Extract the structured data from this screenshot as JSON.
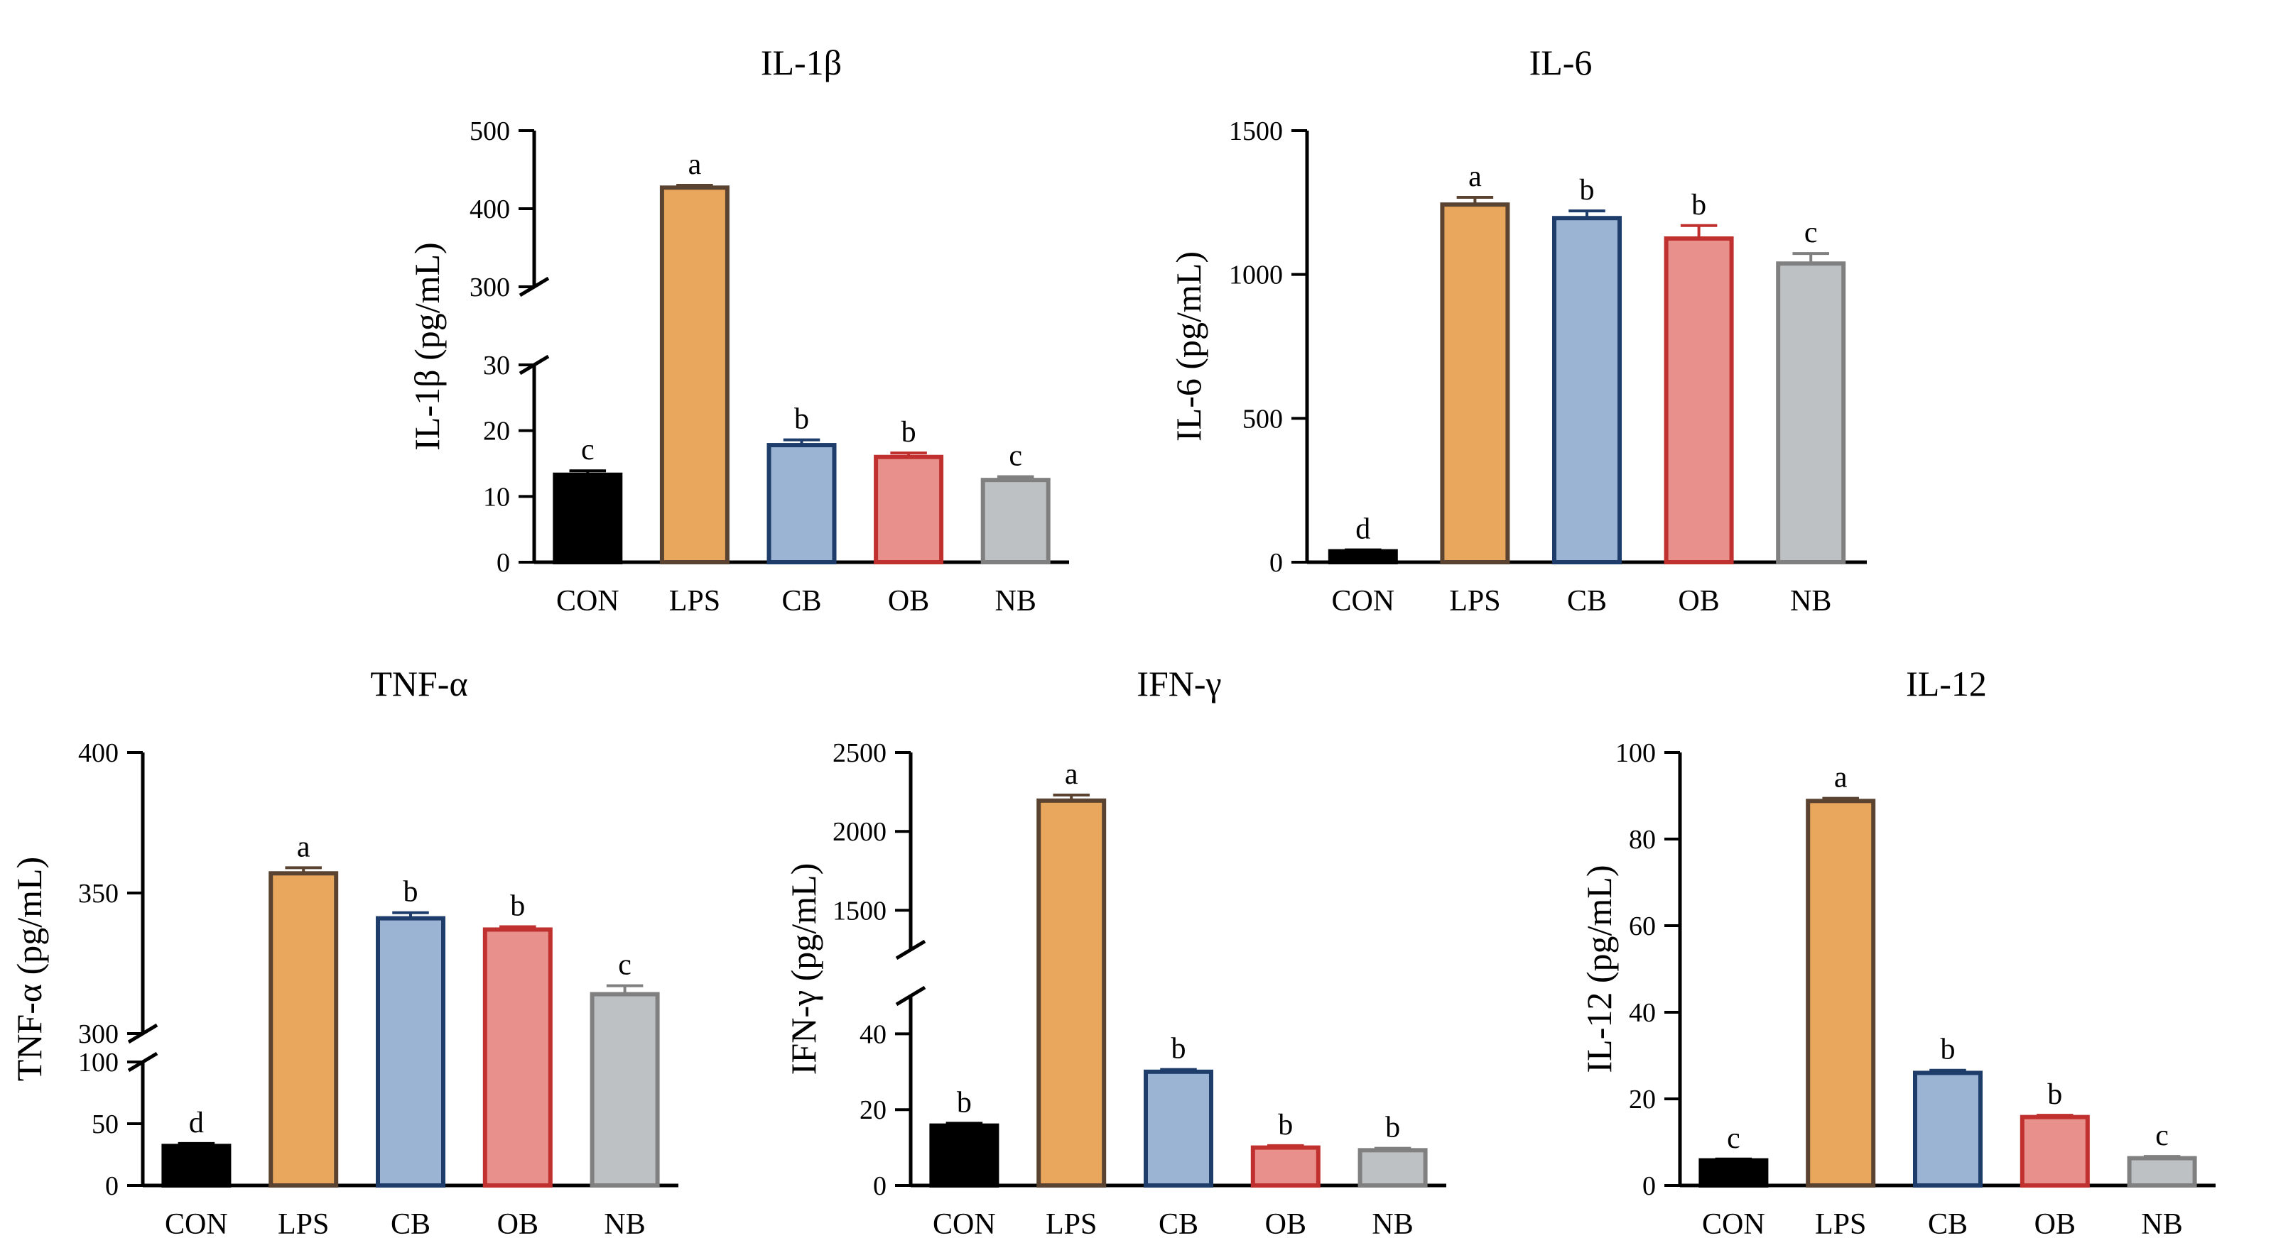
{
  "colors": {
    "CON": {
      "fill": "#000000",
      "stroke": "#000000"
    },
    "LPS": {
      "fill": "#E8A75C",
      "stroke": "#5A4330"
    },
    "CB": {
      "fill": "#9BB4D3",
      "stroke": "#1F3D6B"
    },
    "OB": {
      "fill": "#E8918C",
      "stroke": "#C0302F"
    },
    "NB": {
      "fill": "#BEC1C4",
      "stroke": "#808080"
    }
  },
  "chart_data": [
    {
      "type": "bar",
      "title": "IL-1β",
      "ylabel": "IL-1β (pg/mL)",
      "categories": [
        "CON",
        "LPS",
        "CB",
        "OB",
        "NB"
      ],
      "values": [
        13.3,
        427,
        17.8,
        16.0,
        12.5
      ],
      "errors": [
        0.6,
        3,
        0.8,
        0.6,
        0.5
      ],
      "letters": [
        "c",
        "a",
        "b",
        "b",
        "c"
      ],
      "axis_break": true,
      "ylim_lower": [
        0,
        30
      ],
      "yticks_lower": [
        "0",
        "10",
        "20",
        "30"
      ],
      "ylim_upper": [
        300,
        500
      ],
      "yticks_upper": [
        "300",
        "400",
        "500"
      ]
    },
    {
      "type": "bar",
      "title": "IL-6",
      "ylabel": "IL-6 (pg/mL)",
      "categories": [
        "CON",
        "LPS",
        "CB",
        "OB",
        "NB"
      ],
      "values": [
        38,
        1243,
        1196,
        1125,
        1038
      ],
      "errors": [
        5,
        25,
        25,
        45,
        35
      ],
      "letters": [
        "d",
        "a",
        "b",
        "b",
        "c"
      ],
      "axis_break": false,
      "ylim": [
        0,
        1500
      ],
      "yticks": [
        "0",
        "500",
        "1000",
        "1500"
      ]
    },
    {
      "type": "bar",
      "title": "TNF-α",
      "ylabel": "TNF-α (pg/mL)",
      "categories": [
        "CON",
        "LPS",
        "CB",
        "OB",
        "NB"
      ],
      "values": [
        32,
        357,
        341,
        337,
        314
      ],
      "errors": [
        2,
        2,
        2,
        1,
        3
      ],
      "letters": [
        "d",
        "a",
        "b",
        "b",
        "c"
      ],
      "axis_break": true,
      "ylim_lower": [
        0,
        100
      ],
      "yticks_lower": [
        "0",
        "50",
        "100"
      ],
      "ylim_upper": [
        300,
        400
      ],
      "yticks_upper": [
        "300",
        "350",
        "400"
      ]
    },
    {
      "type": "bar",
      "title": "IFN-γ",
      "ylabel": "IFN-γ (pg/mL)",
      "categories": [
        "CON",
        "LPS",
        "CB",
        "OB",
        "NB"
      ],
      "values": [
        15.8,
        2195,
        30.0,
        10.0,
        9.3
      ],
      "errors": [
        0.6,
        35,
        0.6,
        0.5,
        0.5
      ],
      "letters": [
        "b",
        "a",
        "b",
        "b",
        "b"
      ],
      "axis_break": true,
      "ylim_lower": [
        0,
        50
      ],
      "yticks_lower": [
        "0",
        "20",
        "40"
      ],
      "ylim_upper": [
        1250,
        2500
      ],
      "yticks_upper": [
        "1500",
        "2000",
        "2500"
      ]
    },
    {
      "type": "bar",
      "title": "IL-12",
      "ylabel": "IL-12 (pg/mL)",
      "categories": [
        "CON",
        "LPS",
        "CB",
        "OB",
        "NB"
      ],
      "values": [
        5.8,
        88.8,
        26.0,
        15.8,
        6.3
      ],
      "errors": [
        0.3,
        0.6,
        0.6,
        0.4,
        0.4
      ],
      "letters": [
        "c",
        "a",
        "b",
        "b",
        "c"
      ],
      "axis_break": false,
      "ylim": [
        0,
        100
      ],
      "yticks": [
        "0",
        "20",
        "40",
        "60",
        "80",
        "100"
      ]
    }
  ]
}
